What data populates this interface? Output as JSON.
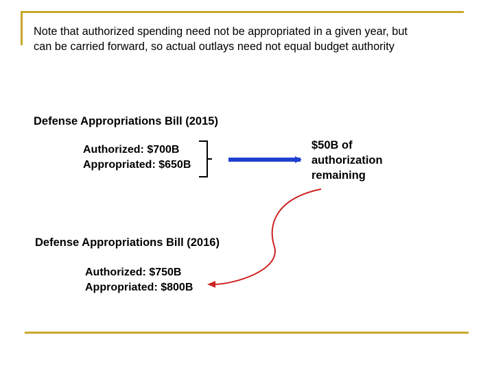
{
  "note": {
    "line1": "Note that authorized spending need not be appropriated in a given year, but",
    "line2": "can be carried forward, so actual outlays need not equal budget authority"
  },
  "bill_2015": {
    "heading": "Defense Appropriations Bill (2015)",
    "authorized": "Authorized: $700B",
    "appropriated": "Appropriated: $650B"
  },
  "bill_2016": {
    "heading": "Defense Appropriations Bill (2016)",
    "authorized": "Authorized: $750B",
    "appropriated": "Appropriated: $800B"
  },
  "remaining": {
    "lines": [
      "$50B of",
      "authorization",
      "remaining"
    ]
  },
  "colors": {
    "accent_rule": "#c9a82a",
    "arrow_blue": "#1f3fd0",
    "curve_red": "#cc2222"
  }
}
